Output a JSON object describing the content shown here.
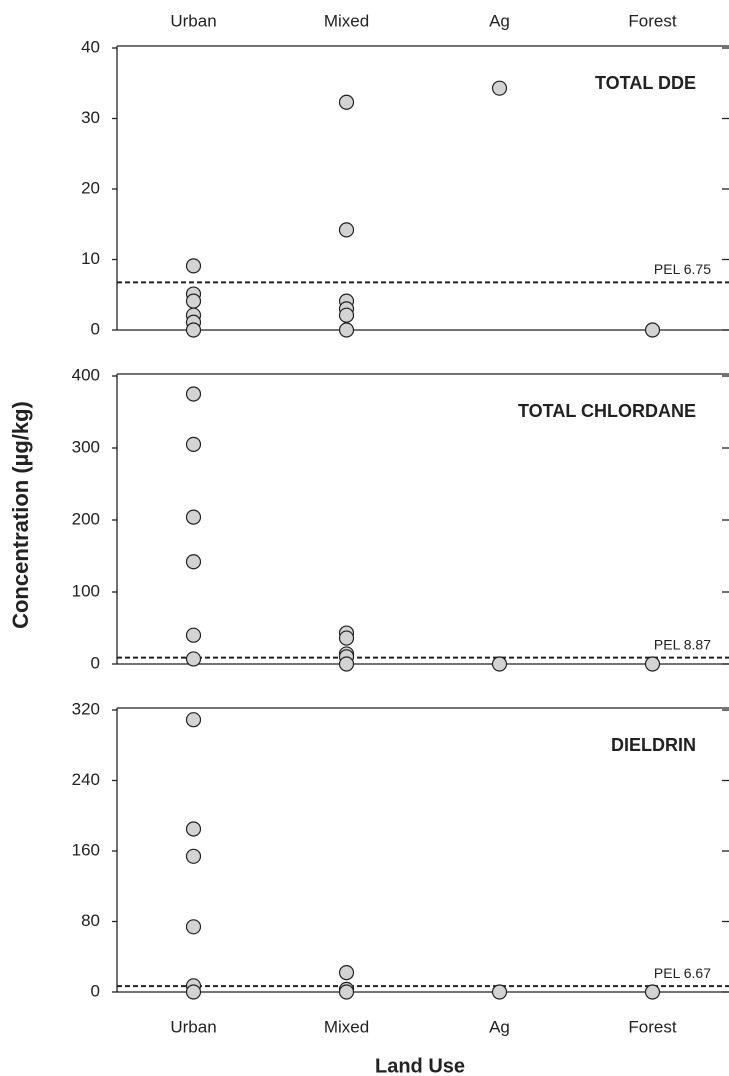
{
  "chart_data": [
    {
      "type": "strip",
      "title": "TOTAL DDE",
      "categories": [
        "Urban",
        "Mixed",
        "Ag",
        "Forest"
      ],
      "values": [
        [
          9.1,
          5.1,
          4.1,
          2.1,
          1.1,
          0
        ],
        [
          32.3,
          14.2,
          4.1,
          3,
          2.1,
          0
        ],
        [
          34.3
        ],
        [
          0
        ]
      ],
      "ylim": [
        0,
        40
      ],
      "yticks": [
        0,
        10,
        20,
        30,
        40
      ],
      "color": "#d3d3d3",
      "pel": {
        "value": 6.75,
        "label": "PEL 6.75"
      }
    },
    {
      "type": "strip",
      "title": "TOTAL CHLORDANE",
      "categories": [
        "Urban",
        "Mixed",
        "Ag",
        "Forest"
      ],
      "values": [
        [
          375,
          305,
          204,
          142,
          40,
          7
        ],
        [
          43,
          36,
          14,
          10,
          0
        ],
        [
          0
        ],
        [
          0
        ]
      ],
      "ylim": [
        0,
        400
      ],
      "yticks": [
        0,
        100,
        200,
        300,
        400
      ],
      "color": "#d3d3d3",
      "pel": {
        "value": 8.87,
        "label": "PEL 8.87"
      }
    },
    {
      "type": "strip",
      "title": "DIELDRIN",
      "categories": [
        "Urban",
        "Mixed",
        "Ag",
        "Forest"
      ],
      "values": [
        [
          309,
          185,
          154,
          74,
          7,
          0
        ],
        [
          22,
          3,
          0
        ],
        [
          0
        ],
        [
          0
        ]
      ],
      "ylim": [
        0,
        320
      ],
      "yticks": [
        0,
        80,
        160,
        240,
        320
      ],
      "color": "#d3d3d3",
      "pel": {
        "value": 6.67,
        "label": "PEL 6.67"
      }
    }
  ],
  "shared": {
    "ylabel": "Concentration  (µg/kg)",
    "xlabel": "Land Use"
  }
}
